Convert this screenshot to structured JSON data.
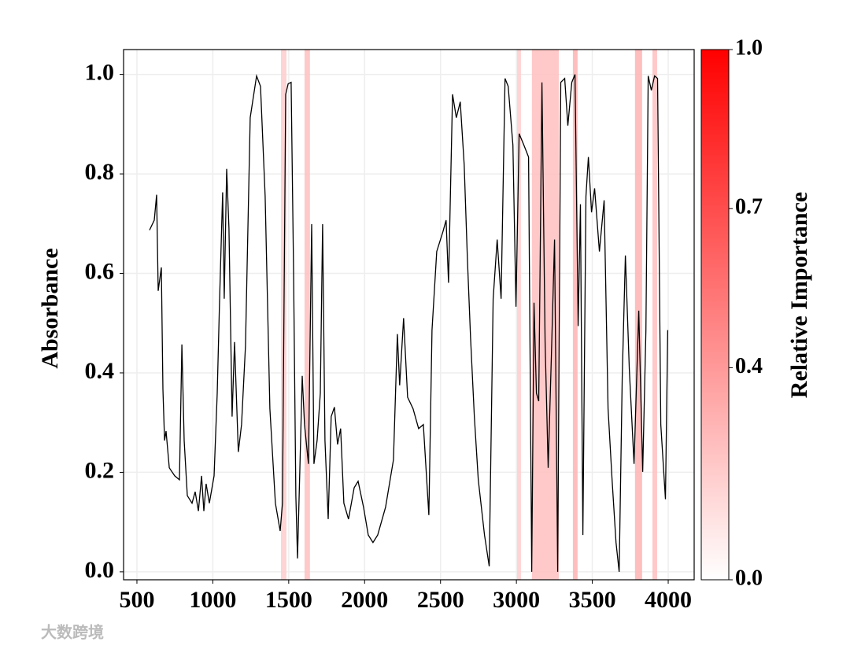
{
  "chart_data": {
    "type": "line",
    "y_label": "Absorbance",
    "colorbar_label": "Relative Importance",
    "watermark": "大数跨境",
    "color": "#000000",
    "grid": true,
    "colormap": [
      "#ffffff",
      "#ff0000"
    ],
    "xlim": [
      412,
      4171
    ],
    "ylim": [
      -0.016,
      1.05
    ],
    "xticks": [
      500,
      1000,
      1500,
      2000,
      2500,
      3000,
      3500,
      4000
    ],
    "yticks": [
      {
        "value": 0.0,
        "label": "0.0"
      },
      0.2,
      0.4,
      0.6,
      0.8,
      {
        "value": 1.0,
        "label": "1.0"
      }
    ],
    "colorbar_lim": [
      0,
      1
    ],
    "colorbar_ticks": [
      {
        "value": 0.0,
        "label": "0.0"
      },
      0.4,
      0.7,
      {
        "value": 1.0,
        "label": "1.0"
      }
    ],
    "bands": [
      {
        "start": 1449,
        "end": 1485,
        "importance": 0.2
      },
      {
        "start": 1604,
        "end": 1640,
        "importance": 0.25
      },
      {
        "start": 3004,
        "end": 3030,
        "importance": 0.2
      },
      {
        "start": 3102,
        "end": 3279,
        "importance": 0.25
      },
      {
        "start": 3372,
        "end": 3403,
        "importance": 0.3
      },
      {
        "start": 3781,
        "end": 3828,
        "importance": 0.3
      },
      {
        "start": 3896,
        "end": 3927,
        "importance": 0.25
      }
    ],
    "x": [
      583,
      614,
      630,
      640,
      661,
      671,
      682,
      692,
      713,
      749,
      780,
      796,
      811,
      832,
      863,
      884,
      905,
      926,
      941,
      956,
      977,
      1008,
      1029,
      1044,
      1065,
      1075,
      1091,
      1106,
      1127,
      1143,
      1168,
      1189,
      1215,
      1246,
      1288,
      1314,
      1345,
      1376,
      1412,
      1444,
      1459,
      1480,
      1496,
      1516,
      1532,
      1547,
      1558,
      1573,
      1589,
      1604,
      1630,
      1651,
      1666,
      1687,
      1708,
      1723,
      1739,
      1760,
      1780,
      1801,
      1822,
      1842,
      1863,
      1894,
      1931,
      1957,
      1993,
      2024,
      2055,
      2086,
      2138,
      2190,
      2216,
      2231,
      2257,
      2283,
      2319,
      2356,
      2387,
      2423,
      2444,
      2475,
      2516,
      2537,
      2553,
      2579,
      2604,
      2630,
      2656,
      2677,
      2698,
      2723,
      2749,
      2790,
      2821,
      2847,
      2873,
      2899,
      2925,
      2946,
      2977,
      2997,
      3018,
      3049,
      3080,
      3101,
      3116,
      3132,
      3147,
      3168,
      3189,
      3209,
      3230,
      3251,
      3272,
      3292,
      3318,
      3339,
      3365,
      3386,
      3407,
      3422,
      3438,
      3458,
      3474,
      3495,
      3515,
      3547,
      3578,
      3604,
      3630,
      3656,
      3677,
      3697,
      3718,
      3744,
      3775,
      3806,
      3832,
      3853,
      3868,
      3889,
      3910,
      3930,
      3951,
      3982,
      3997
    ],
    "values": [
      0.687,
      0.707,
      0.758,
      0.565,
      0.612,
      0.367,
      0.264,
      0.283,
      0.209,
      0.193,
      0.185,
      0.457,
      0.264,
      0.153,
      0.138,
      0.161,
      0.122,
      0.193,
      0.122,
      0.177,
      0.138,
      0.193,
      0.359,
      0.541,
      0.763,
      0.549,
      0.81,
      0.691,
      0.312,
      0.462,
      0.241,
      0.296,
      0.454,
      0.913,
      0.997,
      0.976,
      0.755,
      0.328,
      0.138,
      0.082,
      0.138,
      0.96,
      0.981,
      0.984,
      0.604,
      0.153,
      0.027,
      0.201,
      0.394,
      0.296,
      0.217,
      0.699,
      0.217,
      0.264,
      0.359,
      0.699,
      0.264,
      0.106,
      0.312,
      0.331,
      0.256,
      0.288,
      0.138,
      0.106,
      0.169,
      0.182,
      0.13,
      0.074,
      0.059,
      0.074,
      0.13,
      0.225,
      0.478,
      0.375,
      0.51,
      0.351,
      0.328,
      0.288,
      0.296,
      0.114,
      0.486,
      0.644,
      0.684,
      0.707,
      0.581,
      0.96,
      0.913,
      0.945,
      0.818,
      0.628,
      0.47,
      0.312,
      0.185,
      0.074,
      0.011,
      0.549,
      0.668,
      0.549,
      0.992,
      0.976,
      0.858,
      0.533,
      0.881,
      0.858,
      0.834,
      0.0,
      0.541,
      0.359,
      0.343,
      0.984,
      0.462,
      0.209,
      0.43,
      0.668,
      0.0,
      0.984,
      0.992,
      0.897,
      0.984,
      1.0,
      0.494,
      0.739,
      0.074,
      0.755,
      0.834,
      0.723,
      0.771,
      0.644,
      0.747,
      0.328,
      0.185,
      0.059,
      0.0,
      0.391,
      0.636,
      0.407,
      0.217,
      0.525,
      0.201,
      0.486,
      0.997,
      0.968,
      0.997,
      0.992,
      0.296,
      0.146,
      0.486
    ]
  }
}
